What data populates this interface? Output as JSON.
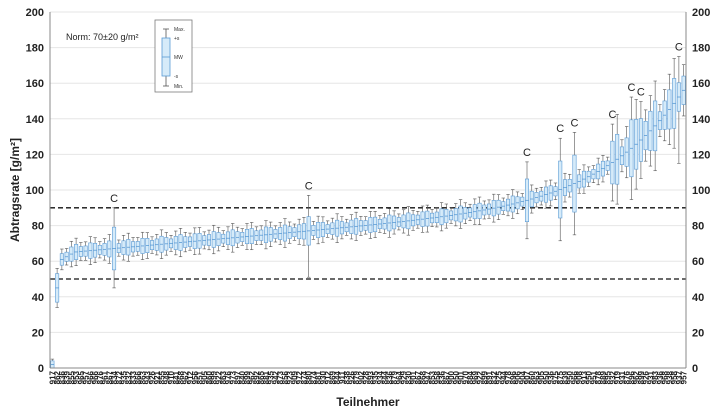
{
  "chart_data": {
    "type": "box",
    "xlabel": "Teilnehmer",
    "ylabel": "Abtragsrate [g/m²]",
    "ylim": [
      0,
      200
    ],
    "yticks": [
      0,
      20,
      40,
      60,
      80,
      100,
      120,
      140,
      160,
      180,
      200
    ],
    "secondary_y_axis": true,
    "grid": "horizontal",
    "annotation": "Norm: 70±20 g/m²",
    "reference_lines": [
      {
        "y": 50,
        "style": "dashed"
      },
      {
        "y": 90,
        "style": "dashed"
      }
    ],
    "legend": {
      "placement": "top-left",
      "labels": [
        "Max.",
        "+s",
        "MW",
        "-s",
        "Min."
      ]
    },
    "colors": {
      "box_fill": "#d6ebf9",
      "box_stroke": "#5b9bd5",
      "whisker": "#555555",
      "reference_line": "#111111",
      "grid": "#e6e6e6"
    },
    "x_tick_labels": [
      "917",
      "862",
      "836",
      "839",
      "855",
      "953",
      "965",
      "957",
      "966",
      "966",
      "876",
      "961",
      "867",
      "834",
      "872",
      "935",
      "832",
      "833",
      "866",
      "863",
      "943",
      "926",
      "921",
      "855",
      "948",
      "910",
      "841",
      "868",
      "962",
      "912",
      "956",
      "851",
      "905",
      "860",
      "899",
      "922",
      "863",
      "976",
      "973",
      "897",
      "840",
      "899",
      "962",
      "892",
      "865",
      "881",
      "935",
      "942",
      "873",
      "856",
      "923",
      "909",
      "972",
      "874",
      "880",
      "874",
      "881",
      "930",
      "912",
      "869",
      "844",
      "911",
      "838",
      "926",
      "879",
      "902",
      "928",
      "893",
      "935",
      "934",
      "844",
      "836",
      "879",
      "964",
      "929",
      "830",
      "901",
      "867",
      "868",
      "947",
      "853",
      "958",
      "836",
      "867",
      "900",
      "950",
      "901",
      "970",
      "884",
      "969",
      "922",
      "899",
      "891",
      "832",
      "925",
      "944",
      "978",
      "896",
      "906",
      "904",
      "907",
      "860",
      "963",
      "905",
      "950",
      "936",
      "975",
      "875",
      "839",
      "950",
      "966",
      "908",
      "913",
      "950",
      "951",
      "878",
      "889",
      "895",
      "932",
      "919",
      "931",
      "876",
      "896",
      "962",
      "899",
      "926",
      "931",
      "983",
      "936",
      "968",
      "938",
      "958",
      "937",
      "957"
    ],
    "annotated_points": [
      {
        "x": "961",
        "label": "C"
      },
      {
        "x": "969",
        "label": "C"
      },
      {
        "x": "977",
        "label": "C"
      },
      {
        "x": "888",
        "label": "C"
      },
      {
        "x": "896",
        "label": "C"
      },
      {
        "x": "906",
        "label": "C"
      },
      {
        "x": "936",
        "label": "C"
      },
      {
        "x": "939",
        "label": "C"
      },
      {
        "x": "957",
        "label": "C"
      }
    ]
  }
}
